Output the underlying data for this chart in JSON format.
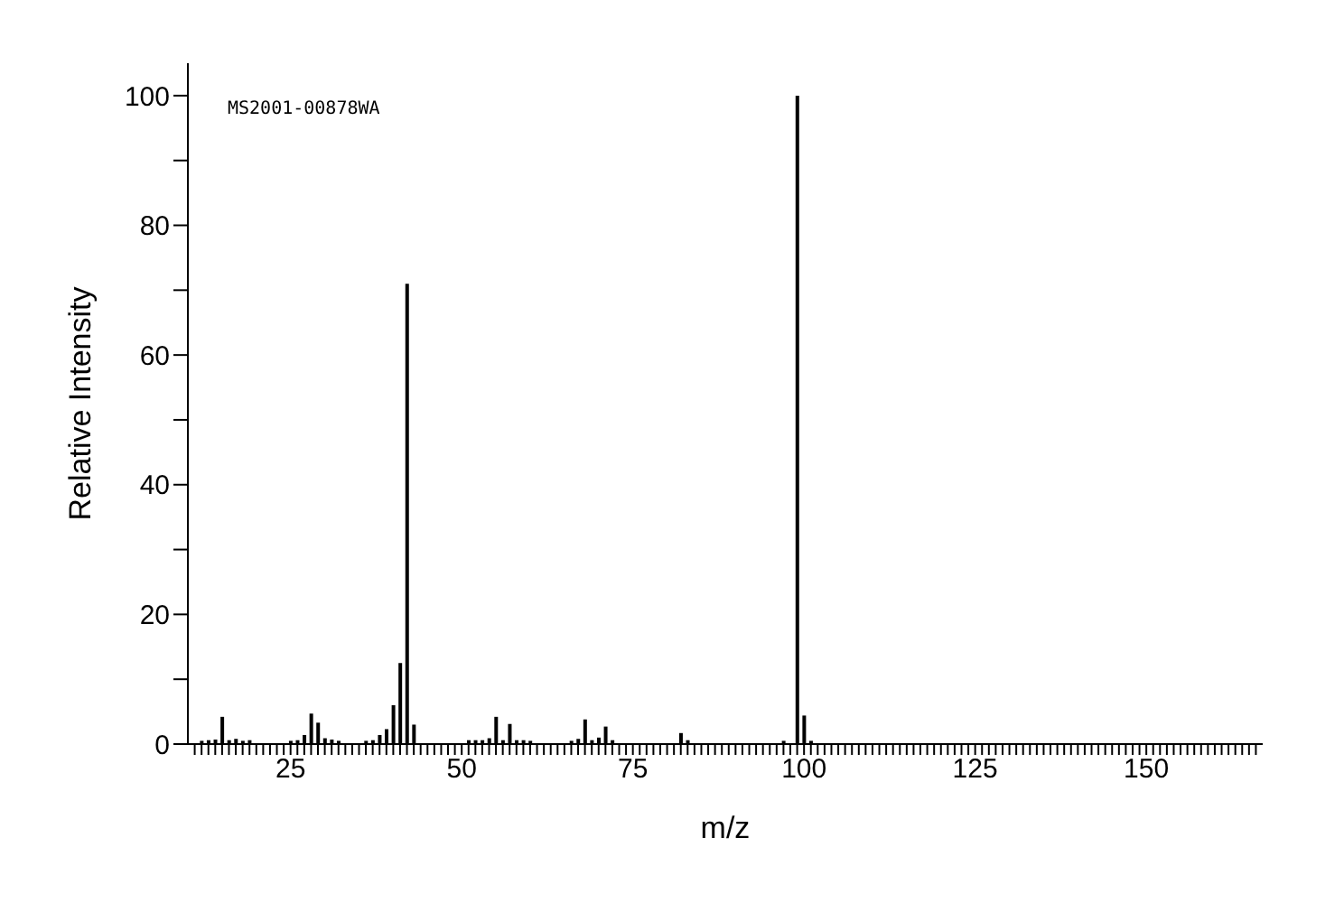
{
  "chart_data": {
    "type": "bar",
    "xlabel": "m/z",
    "ylabel": "Relative Intensity",
    "annotations": [
      "MS2001-00878WA"
    ],
    "x": [
      12,
      13,
      14,
      15,
      16,
      17,
      18,
      19,
      25,
      26,
      27,
      28,
      29,
      30,
      31,
      32,
      36,
      37,
      38,
      39,
      40,
      41,
      42,
      43,
      51,
      52,
      53,
      54,
      55,
      56,
      57,
      58,
      59,
      60,
      66,
      67,
      68,
      69,
      70,
      71,
      72,
      82,
      83,
      97,
      99,
      100,
      101
    ],
    "series": [
      {
        "color": "#000000",
        "values": [
          0.5,
          0.6,
          0.7,
          4.2,
          0.6,
          0.8,
          0.5,
          0.6,
          0.5,
          0.6,
          1.4,
          4.7,
          3.3,
          0.9,
          0.7,
          0.5,
          0.5,
          0.6,
          1.4,
          2.3,
          6,
          12.5,
          71,
          3,
          0.6,
          0.6,
          0.6,
          0.9,
          4.2,
          0.6,
          3.1,
          0.6,
          0.6,
          0.5,
          0.5,
          0.8,
          3.8,
          0.6,
          1,
          2.7,
          0.6,
          1.7,
          0.6,
          0.5,
          100,
          4.4,
          0.5
        ]
      }
    ],
    "xlim": [
      10,
      167
    ],
    "xticks": [
      {
        "value": 11,
        "label": null
      },
      {
        "value": 12,
        "label": null
      },
      {
        "value": 13,
        "label": null
      },
      {
        "value": 14,
        "label": null
      },
      {
        "value": 15,
        "label": null
      },
      {
        "value": 16,
        "label": null
      },
      {
        "value": 17,
        "label": null
      },
      {
        "value": 18,
        "label": null
      },
      {
        "value": 19,
        "label": null
      },
      {
        "value": 20,
        "label": null
      },
      {
        "value": 21,
        "label": null
      },
      {
        "value": 22,
        "label": null
      },
      {
        "value": 23,
        "label": null
      },
      {
        "value": 24,
        "label": null
      },
      25,
      {
        "value": 26,
        "label": null
      },
      {
        "value": 27,
        "label": null
      },
      {
        "value": 28,
        "label": null
      },
      {
        "value": 29,
        "label": null
      },
      {
        "value": 30,
        "label": null
      },
      {
        "value": 31,
        "label": null
      },
      {
        "value": 32,
        "label": null
      },
      {
        "value": 33,
        "label": null
      },
      {
        "value": 34,
        "label": null
      },
      {
        "value": 35,
        "label": null
      },
      {
        "value": 36,
        "label": null
      },
      {
        "value": 37,
        "label": null
      },
      {
        "value": 38,
        "label": null
      },
      {
        "value": 39,
        "label": null
      },
      {
        "value": 40,
        "label": null
      },
      {
        "value": 41,
        "label": null
      },
      {
        "value": 42,
        "label": null
      },
      {
        "value": 43,
        "label": null
      },
      {
        "value": 44,
        "label": null
      },
      {
        "value": 45,
        "label": null
      },
      {
        "value": 46,
        "label": null
      },
      {
        "value": 47,
        "label": null
      },
      {
        "value": 48,
        "label": null
      },
      {
        "value": 49,
        "label": null
      },
      50,
      {
        "value": 51,
        "label": null
      },
      {
        "value": 52,
        "label": null
      },
      {
        "value": 53,
        "label": null
      },
      {
        "value": 54,
        "label": null
      },
      {
        "value": 55,
        "label": null
      },
      {
        "value": 56,
        "label": null
      },
      {
        "value": 57,
        "label": null
      },
      {
        "value": 58,
        "label": null
      },
      {
        "value": 59,
        "label": null
      },
      {
        "value": 60,
        "label": null
      },
      {
        "value": 61,
        "label": null
      },
      {
        "value": 62,
        "label": null
      },
      {
        "value": 63,
        "label": null
      },
      {
        "value": 64,
        "label": null
      },
      {
        "value": 65,
        "label": null
      },
      {
        "value": 66,
        "label": null
      },
      {
        "value": 67,
        "label": null
      },
      {
        "value": 68,
        "label": null
      },
      {
        "value": 69,
        "label": null
      },
      {
        "value": 70,
        "label": null
      },
      {
        "value": 71,
        "label": null
      },
      {
        "value": 72,
        "label": null
      },
      {
        "value": 73,
        "label": null
      },
      {
        "value": 74,
        "label": null
      },
      75,
      {
        "value": 76,
        "label": null
      },
      {
        "value": 77,
        "label": null
      },
      {
        "value": 78,
        "label": null
      },
      {
        "value": 79,
        "label": null
      },
      {
        "value": 80,
        "label": null
      },
      {
        "value": 81,
        "label": null
      },
      {
        "value": 82,
        "label": null
      },
      {
        "value": 83,
        "label": null
      },
      {
        "value": 84,
        "label": null
      },
      {
        "value": 85,
        "label": null
      },
      {
        "value": 86,
        "label": null
      },
      {
        "value": 87,
        "label": null
      },
      {
        "value": 88,
        "label": null
      },
      {
        "value": 89,
        "label": null
      },
      {
        "value": 90,
        "label": null
      },
      {
        "value": 91,
        "label": null
      },
      {
        "value": 92,
        "label": null
      },
      {
        "value": 93,
        "label": null
      },
      {
        "value": 94,
        "label": null
      },
      {
        "value": 95,
        "label": null
      },
      {
        "value": 96,
        "label": null
      },
      {
        "value": 97,
        "label": null
      },
      {
        "value": 98,
        "label": null
      },
      {
        "value": 99,
        "label": null
      },
      100,
      {
        "value": 101,
        "label": null
      },
      {
        "value": 102,
        "label": null
      },
      {
        "value": 103,
        "label": null
      },
      {
        "value": 104,
        "label": null
      },
      {
        "value": 105,
        "label": null
      },
      {
        "value": 106,
        "label": null
      },
      {
        "value": 107,
        "label": null
      },
      {
        "value": 108,
        "label": null
      },
      {
        "value": 109,
        "label": null
      },
      {
        "value": 110,
        "label": null
      },
      {
        "value": 111,
        "label": null
      },
      {
        "value": 112,
        "label": null
      },
      {
        "value": 113,
        "label": null
      },
      {
        "value": 114,
        "label": null
      },
      {
        "value": 115,
        "label": null
      },
      {
        "value": 116,
        "label": null
      },
      {
        "value": 117,
        "label": null
      },
      {
        "value": 118,
        "label": null
      },
      {
        "value": 119,
        "label": null
      },
      {
        "value": 120,
        "label": null
      },
      {
        "value": 121,
        "label": null
      },
      {
        "value": 122,
        "label": null
      },
      {
        "value": 123,
        "label": null
      },
      {
        "value": 124,
        "label": null
      },
      125,
      {
        "value": 126,
        "label": null
      },
      {
        "value": 127,
        "label": null
      },
      {
        "value": 128,
        "label": null
      },
      {
        "value": 129,
        "label": null
      },
      {
        "value": 130,
        "label": null
      },
      {
        "value": 131,
        "label": null
      },
      {
        "value": 132,
        "label": null
      },
      {
        "value": 133,
        "label": null
      },
      {
        "value": 134,
        "label": null
      },
      {
        "value": 135,
        "label": null
      },
      {
        "value": 136,
        "label": null
      },
      {
        "value": 137,
        "label": null
      },
      {
        "value": 138,
        "label": null
      },
      {
        "value": 139,
        "label": null
      },
      {
        "value": 140,
        "label": null
      },
      {
        "value": 141,
        "label": null
      },
      {
        "value": 142,
        "label": null
      },
      {
        "value": 143,
        "label": null
      },
      {
        "value": 144,
        "label": null
      },
      {
        "value": 145,
        "label": null
      },
      {
        "value": 146,
        "label": null
      },
      {
        "value": 147,
        "label": null
      },
      {
        "value": 148,
        "label": null
      },
      {
        "value": 149,
        "label": null
      },
      150,
      {
        "value": 151,
        "label": null
      },
      {
        "value": 152,
        "label": null
      },
      {
        "value": 153,
        "label": null
      },
      {
        "value": 154,
        "label": null
      },
      {
        "value": 155,
        "label": null
      },
      {
        "value": 156,
        "label": null
      },
      {
        "value": 157,
        "label": null
      },
      {
        "value": 158,
        "label": null
      },
      {
        "value": 159,
        "label": null
      },
      {
        "value": 160,
        "label": null
      },
      {
        "value": 161,
        "label": null
      },
      {
        "value": 162,
        "label": null
      },
      {
        "value": 163,
        "label": null
      },
      {
        "value": 164,
        "label": null
      },
      {
        "value": 165,
        "label": null
      },
      {
        "value": 166,
        "label": null
      }
    ],
    "ylim": [
      0,
      105
    ],
    "yticks": [
      0,
      {
        "value": 10,
        "label": null
      },
      20,
      {
        "value": 30,
        "label": null
      },
      40,
      {
        "value": 50,
        "label": null
      },
      60,
      {
        "value": 70,
        "label": null
      },
      80,
      {
        "value": 90,
        "label": null
      },
      100
    ]
  }
}
